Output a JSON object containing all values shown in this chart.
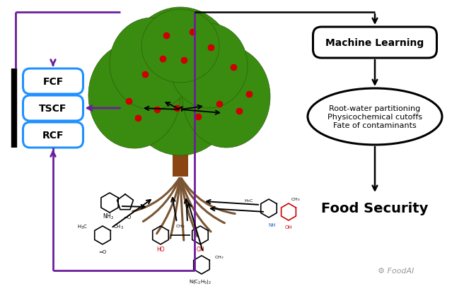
{
  "bg_color": "#ffffff",
  "purple_color": "#6B1E9B",
  "blue_color": "#1E90FF",
  "black_color": "#000000",
  "gray_color": "#999999",
  "red_fruit_color": "#CC0000",
  "trunk_color": "#8B4513",
  "root_color": "#7B5533",
  "leaf_color": "#3a8c10",
  "leaf_edge_color": "#2a6008",
  "figsize": [
    6.56,
    4.06
  ],
  "dpi": 100,
  "fcf_label": "FCF",
  "tscf_label": "TSCF",
  "rcf_label": "RCF",
  "ml_label": "Machine Learning",
  "oval_label": "Root-water partitioning\nPhysicochemical cutoffs\nFate of contaminants",
  "food_security_label": "Food Security",
  "foodai_label": "⚙ FoodAI"
}
